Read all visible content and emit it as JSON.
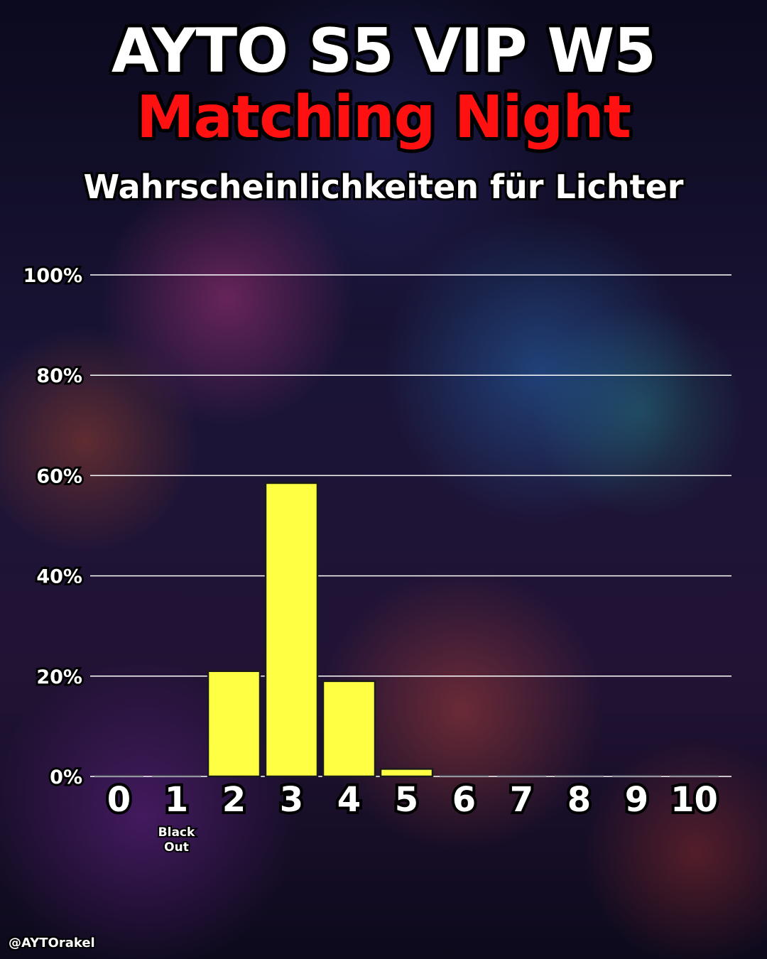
{
  "header": {
    "title_line_1": "AYTO S5 VIP W5",
    "title_line_2": "Matching Night",
    "subtitle": "Wahrscheinlichkeiten für Lichter"
  },
  "watermark": "@AYTOrakel",
  "colors": {
    "bar": "#ffff44",
    "bar_outline": "#1a1a1a",
    "highlight_label": "#ffff00",
    "title_red": "#ff1111",
    "grid": "#ffffff"
  },
  "chart_data": {
    "type": "bar",
    "title": "",
    "xlabel": "",
    "ylabel": "",
    "categories": [
      "0",
      "1",
      "2",
      "3",
      "4",
      "5",
      "6",
      "7",
      "8",
      "9",
      "10"
    ],
    "values": [
      0,
      0,
      21,
      58.5,
      19,
      1.5,
      0,
      0,
      0,
      0,
      0
    ],
    "ylim": [
      0,
      100
    ],
    "y_ticks": [
      0,
      20,
      40,
      60,
      80,
      100
    ],
    "y_tick_labels": [
      "0%",
      "20%",
      "40%",
      "60%",
      "80%",
      "100%"
    ],
    "highlight_category": "4",
    "category_notes": {
      "1": [
        "Black",
        "Out"
      ]
    },
    "grid": true,
    "legend": "none"
  }
}
